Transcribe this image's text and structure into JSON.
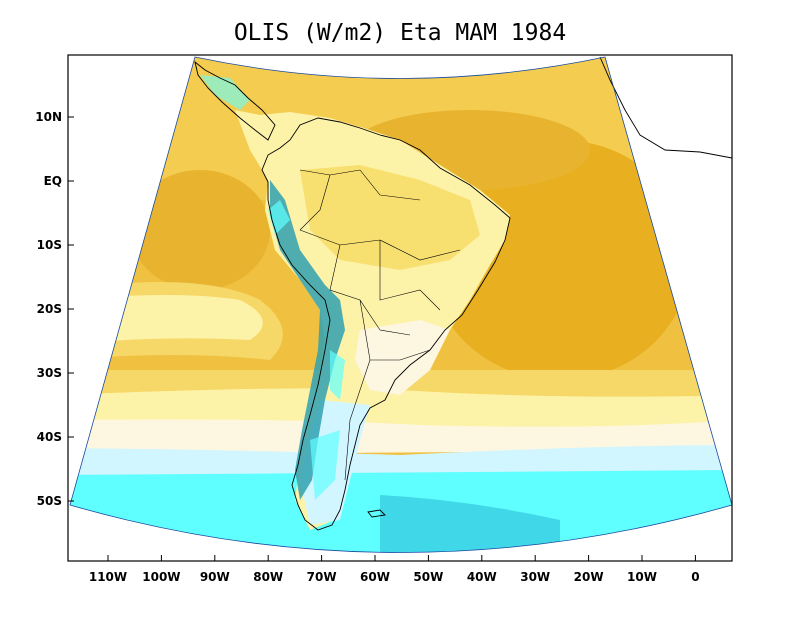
{
  "title": "OLIS (W/m2) Eta MAM 1984",
  "map": {
    "variable": "OLIS",
    "units": "W/m2",
    "model": "Eta",
    "season": "MAM",
    "year": "1984",
    "region": "South America",
    "lat_ticks": [
      "10N",
      "EQ",
      "10S",
      "20S",
      "30S",
      "40S",
      "50S"
    ],
    "lon_ticks": [
      "110W",
      "100W",
      "90W",
      "80W",
      "70W",
      "60W",
      "50W",
      "40W",
      "30W",
      "20W",
      "10W",
      "0"
    ]
  },
  "colors": {
    "highest": "#e8b020",
    "high": "#f0c040",
    "mid_high": "#f6d868",
    "mid": "#fdf3a8",
    "low_mid": "#fdf6e0",
    "low": "#d2f6ff",
    "lower": "#60ffff",
    "lowest": "#40d8e8",
    "andes": "#30a0b0"
  }
}
